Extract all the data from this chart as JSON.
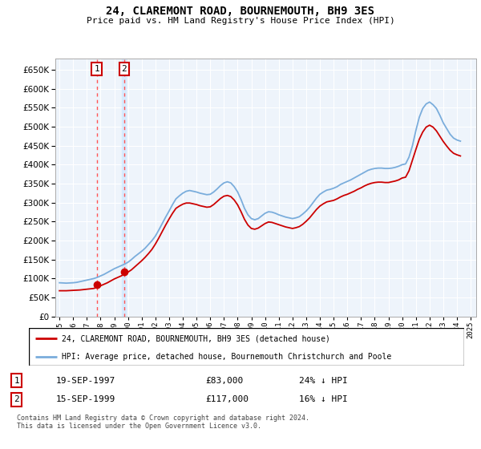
{
  "title": "24, CLAREMONT ROAD, BOURNEMOUTH, BH9 3ES",
  "subtitle": "Price paid vs. HM Land Registry's House Price Index (HPI)",
  "legend_line1": "24, CLAREMONT ROAD, BOURNEMOUTH, BH9 3ES (detached house)",
  "legend_line2": "HPI: Average price, detached house, Bournemouth Christchurch and Poole",
  "footer": "Contains HM Land Registry data © Crown copyright and database right 2024.\nThis data is licensed under the Open Government Licence v3.0.",
  "sale1_label": "1",
  "sale1_date": "19-SEP-1997",
  "sale1_price": "£83,000",
  "sale1_hpi": "24% ↓ HPI",
  "sale2_label": "2",
  "sale2_date": "15-SEP-1999",
  "sale2_price": "£117,000",
  "sale2_hpi": "16% ↓ HPI",
  "sale1_x": 1997.72,
  "sale1_y": 83000,
  "sale2_x": 1999.72,
  "sale2_y": 117000,
  "hpi_color": "#7aaddc",
  "price_color": "#cc0000",
  "sale_marker_color": "#cc0000",
  "vline_color": "#ff5555",
  "highlight_color": "#d0e8ff",
  "chart_bg": "#eef4fb",
  "ylim_min": 0,
  "ylim_max": 680000,
  "yticks": [
    0,
    50000,
    100000,
    150000,
    200000,
    250000,
    300000,
    350000,
    400000,
    450000,
    500000,
    550000,
    600000,
    650000
  ],
  "hpi_data_x": [
    1995.0,
    1995.25,
    1995.5,
    1995.75,
    1996.0,
    1996.25,
    1996.5,
    1996.75,
    1997.0,
    1997.25,
    1997.5,
    1997.75,
    1998.0,
    1998.25,
    1998.5,
    1998.75,
    1999.0,
    1999.25,
    1999.5,
    1999.75,
    2000.0,
    2000.25,
    2000.5,
    2000.75,
    2001.0,
    2001.25,
    2001.5,
    2001.75,
    2002.0,
    2002.25,
    2002.5,
    2002.75,
    2003.0,
    2003.25,
    2003.5,
    2003.75,
    2004.0,
    2004.25,
    2004.5,
    2004.75,
    2005.0,
    2005.25,
    2005.5,
    2005.75,
    2006.0,
    2006.25,
    2006.5,
    2006.75,
    2007.0,
    2007.25,
    2007.5,
    2007.75,
    2008.0,
    2008.25,
    2008.5,
    2008.75,
    2009.0,
    2009.25,
    2009.5,
    2009.75,
    2010.0,
    2010.25,
    2010.5,
    2010.75,
    2011.0,
    2011.25,
    2011.5,
    2011.75,
    2012.0,
    2012.25,
    2012.5,
    2012.75,
    2013.0,
    2013.25,
    2013.5,
    2013.75,
    2014.0,
    2014.25,
    2014.5,
    2014.75,
    2015.0,
    2015.25,
    2015.5,
    2015.75,
    2016.0,
    2016.25,
    2016.5,
    2016.75,
    2017.0,
    2017.25,
    2017.5,
    2017.75,
    2018.0,
    2018.25,
    2018.5,
    2018.75,
    2019.0,
    2019.25,
    2019.5,
    2019.75,
    2020.0,
    2020.25,
    2020.5,
    2020.75,
    2021.0,
    2021.25,
    2021.5,
    2021.75,
    2022.0,
    2022.25,
    2022.5,
    2022.75,
    2023.0,
    2023.25,
    2023.5,
    2023.75,
    2024.0,
    2024.25
  ],
  "hpi_data_y": [
    89000,
    88500,
    88000,
    88500,
    89000,
    90000,
    92000,
    94000,
    96000,
    98000,
    100000,
    103000,
    107000,
    111000,
    116000,
    121000,
    126000,
    130000,
    134000,
    138000,
    143000,
    150000,
    158000,
    165000,
    172000,
    180000,
    190000,
    200000,
    212000,
    228000,
    245000,
    262000,
    278000,
    295000,
    310000,
    318000,
    325000,
    330000,
    332000,
    330000,
    328000,
    325000,
    323000,
    321000,
    322000,
    328000,
    336000,
    345000,
    352000,
    355000,
    352000,
    342000,
    328000,
    308000,
    285000,
    268000,
    258000,
    255000,
    258000,
    265000,
    272000,
    276000,
    275000,
    272000,
    268000,
    265000,
    262000,
    260000,
    258000,
    260000,
    263000,
    270000,
    278000,
    288000,
    300000,
    312000,
    322000,
    328000,
    333000,
    335000,
    338000,
    342000,
    348000,
    352000,
    356000,
    360000,
    365000,
    370000,
    375000,
    380000,
    385000,
    388000,
    390000,
    391000,
    391000,
    390000,
    390000,
    391000,
    393000,
    396000,
    400000,
    402000,
    420000,
    450000,
    490000,
    525000,
    548000,
    560000,
    565000,
    558000,
    548000,
    530000,
    510000,
    495000,
    480000,
    470000,
    465000,
    462000
  ],
  "price_data_x": [
    1995.0,
    1995.25,
    1995.5,
    1995.75,
    1996.0,
    1996.25,
    1996.5,
    1996.75,
    1997.0,
    1997.25,
    1997.5,
    1997.75,
    1998.0,
    1998.25,
    1998.5,
    1998.75,
    1999.0,
    1999.25,
    1999.5,
    1999.75,
    2000.0,
    2000.25,
    2000.5,
    2000.75,
    2001.0,
    2001.25,
    2001.5,
    2001.75,
    2002.0,
    2002.25,
    2002.5,
    2002.75,
    2003.0,
    2003.25,
    2003.5,
    2003.75,
    2004.0,
    2004.25,
    2004.5,
    2004.75,
    2005.0,
    2005.25,
    2005.5,
    2005.75,
    2006.0,
    2006.25,
    2006.5,
    2006.75,
    2007.0,
    2007.25,
    2007.5,
    2007.75,
    2008.0,
    2008.25,
    2008.5,
    2008.75,
    2009.0,
    2009.25,
    2009.5,
    2009.75,
    2010.0,
    2010.25,
    2010.5,
    2010.75,
    2011.0,
    2011.25,
    2011.5,
    2011.75,
    2012.0,
    2012.25,
    2012.5,
    2012.75,
    2013.0,
    2013.25,
    2013.5,
    2013.75,
    2014.0,
    2014.25,
    2014.5,
    2014.75,
    2015.0,
    2015.25,
    2015.5,
    2015.75,
    2016.0,
    2016.25,
    2016.5,
    2016.75,
    2017.0,
    2017.25,
    2017.5,
    2017.75,
    2018.0,
    2018.25,
    2018.5,
    2018.75,
    2019.0,
    2019.25,
    2019.5,
    2019.75,
    2020.0,
    2020.25,
    2020.5,
    2020.75,
    2021.0,
    2021.25,
    2021.5,
    2021.75,
    2022.0,
    2022.25,
    2022.5,
    2022.75,
    2023.0,
    2023.25,
    2023.5,
    2023.75,
    2024.0,
    2024.25
  ],
  "price_data_y": [
    68000,
    68000,
    68000,
    68500,
    69000,
    69500,
    70000,
    71000,
    72000,
    73000,
    74000,
    77000,
    81000,
    85000,
    89000,
    94000,
    99000,
    103000,
    107000,
    112000,
    117000,
    123000,
    131000,
    139000,
    147000,
    156000,
    166000,
    177000,
    191000,
    207000,
    224000,
    241000,
    257000,
    272000,
    285000,
    291000,
    296000,
    299000,
    299000,
    297000,
    295000,
    292000,
    290000,
    288000,
    289000,
    295000,
    303000,
    311000,
    317000,
    319000,
    316000,
    307000,
    294000,
    276000,
    256000,
    241000,
    232000,
    230000,
    233000,
    239000,
    245000,
    249000,
    248000,
    245000,
    242000,
    239000,
    236000,
    234000,
    232000,
    234000,
    237000,
    243000,
    251000,
    260000,
    271000,
    282000,
    291000,
    297000,
    302000,
    304000,
    306000,
    310000,
    315000,
    319000,
    322000,
    326000,
    330000,
    335000,
    339000,
    344000,
    348000,
    351000,
    353000,
    354000,
    354000,
    353000,
    353000,
    355000,
    357000,
    360000,
    365000,
    367000,
    384000,
    412000,
    440000,
    467000,
    486000,
    499000,
    504000,
    499000,
    489000,
    475000,
    461000,
    449000,
    438000,
    430000,
    426000,
    423000
  ],
  "xticks": [
    1995,
    1996,
    1997,
    1998,
    1999,
    2000,
    2001,
    2002,
    2003,
    2004,
    2005,
    2006,
    2007,
    2008,
    2009,
    2010,
    2011,
    2012,
    2013,
    2014,
    2015,
    2016,
    2017,
    2018,
    2019,
    2020,
    2021,
    2022,
    2023,
    2024,
    2025
  ],
  "xlim_min": 1994.7,
  "xlim_max": 2025.4
}
